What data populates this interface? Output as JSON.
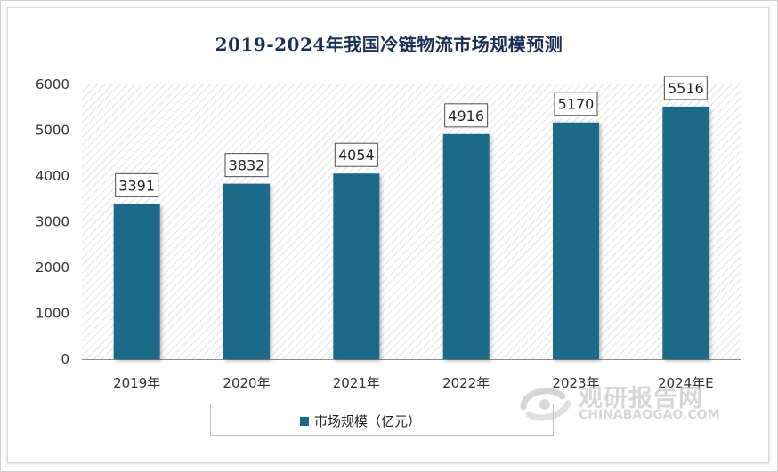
{
  "chart_data": {
    "type": "bar",
    "title": "2019-2024年我国冷链物流市场规模预测",
    "categories": [
      "2019年",
      "2020年",
      "2021年",
      "2022年",
      "2023年",
      "2024年E"
    ],
    "series": [
      {
        "name": "市场规模（亿元）",
        "values": [
          3391,
          3832,
          4054,
          4916,
          5170,
          5516
        ]
      }
    ],
    "ylim": [
      0,
      6000
    ],
    "yticks": [
      0,
      1000,
      2000,
      3000,
      4000,
      5000,
      6000
    ],
    "data_labels": [
      "3391",
      "3832",
      "4054",
      "4916",
      "5170",
      "5516"
    ],
    "grid": false,
    "plot_background": "diagonal-hatch",
    "legend_position": "bottom",
    "colors": {
      "bar": "#1a6a8a",
      "title": "#1c2f55"
    }
  },
  "legend": {
    "label": "市场规模（亿元）"
  },
  "watermark": {
    "cn": "观研报告网",
    "en": "CHINABAOGAO.COM"
  }
}
